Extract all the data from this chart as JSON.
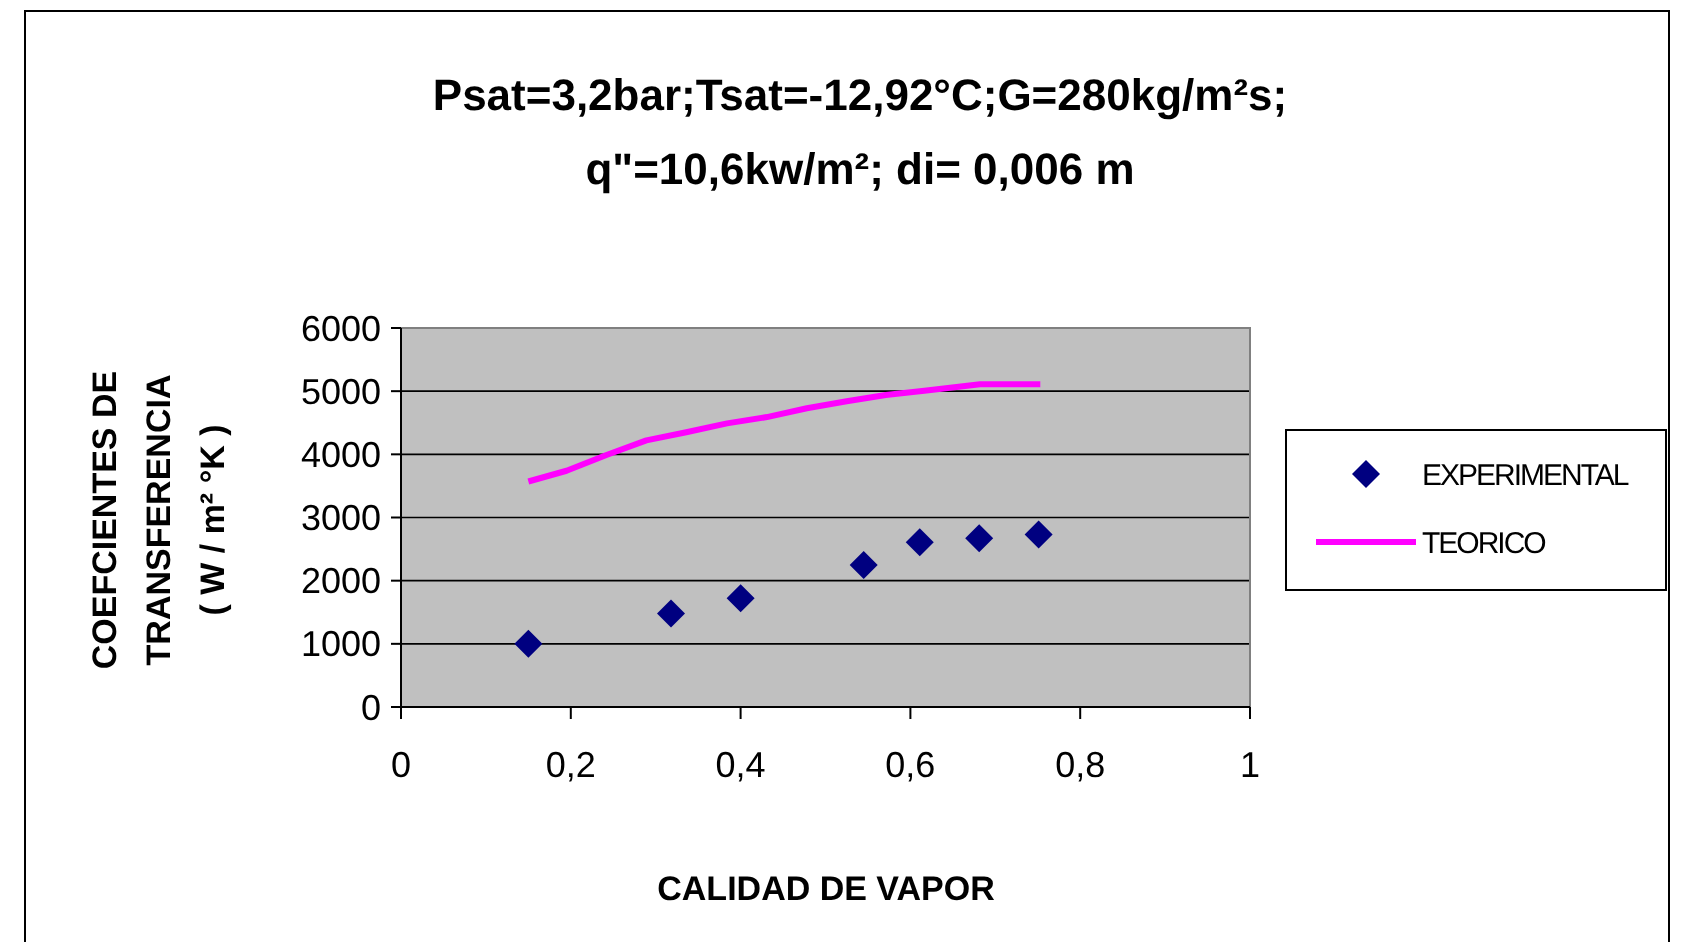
{
  "chart_data": {
    "type": "scatter",
    "title": "Psat=3,2bar;Tsat=-12,92°C;G=280kg/m²s;\nq\"=10,6kw/m²; di= 0,006 m",
    "xlabel": "CALIDAD DE VAPOR",
    "ylabel": "COEFCIENTES DE\nTRANSFERENCIA\n( W / m² °K )",
    "xlim": [
      0,
      1
    ],
    "xticks": [
      {
        "value": 0,
        "label": "0"
      },
      {
        "value": 0.2,
        "label": "0,2"
      },
      {
        "value": 0.4,
        "label": "0,4"
      },
      {
        "value": 0.6,
        "label": "0,6"
      },
      {
        "value": 0.8,
        "label": "0,8"
      },
      {
        "value": 1,
        "label": "1"
      }
    ],
    "ylim": [
      0,
      6000
    ],
    "yticks": [
      0,
      1000,
      2000,
      3000,
      4000,
      5000,
      6000
    ],
    "grid": "y",
    "legend": "right",
    "series": [
      {
        "name": "EXPERIMENTAL",
        "marker": "diamond",
        "color": "#000080",
        "x": [
          0.15,
          0.318,
          0.4,
          0.545,
          0.611,
          0.681,
          0.751
        ],
        "values": [
          1000,
          1480,
          1720,
          2250,
          2610,
          2670,
          2730
        ]
      },
      {
        "name": "TEORICO",
        "type": "line",
        "marker": "none",
        "color": "#ff00ff",
        "x": [
          0.15,
          0.195,
          0.242,
          0.289,
          0.336,
          0.384,
          0.431,
          0.478,
          0.525,
          0.571,
          0.619,
          0.682,
          0.753
        ],
        "values": [
          3570,
          3740,
          3990,
          4220,
          4350,
          4490,
          4590,
          4730,
          4840,
          4940,
          5010,
          5110,
          5110
        ]
      }
    ]
  }
}
